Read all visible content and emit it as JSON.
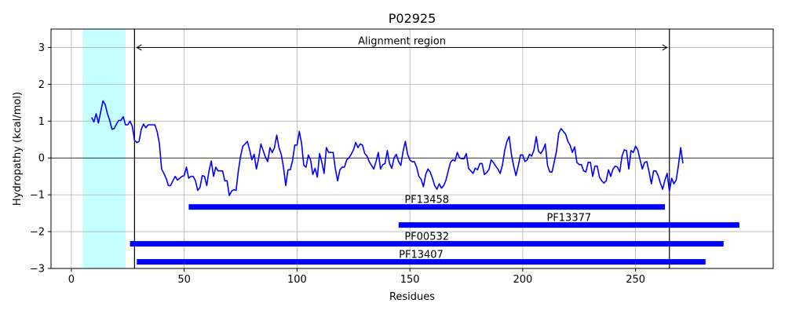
{
  "chart_data": {
    "type": "line",
    "title": "P02925",
    "xlabel": "Residues",
    "ylabel": "Hydropathy (kcal/mol)",
    "xlim": [
      -9,
      311
    ],
    "ylim": [
      -3,
      3.5
    ],
    "xticks": [
      0,
      50,
      100,
      150,
      200,
      250
    ],
    "yticks": [
      -3,
      -2,
      -1,
      0,
      1,
      2,
      3
    ],
    "grid": true,
    "colors": {
      "line": "#0000ff",
      "bars": "#0000ff",
      "highlight": "#c4ffff",
      "axis": "#000000",
      "grid": "#b0b0b0"
    },
    "highlight_region": {
      "x0": 5,
      "x1": 24
    },
    "alignment_region": {
      "label": "Alignment region",
      "x0": 28,
      "x1": 265,
      "y": 3
    },
    "series": [
      {
        "values": [
          [
            9,
            1.1
          ],
          [
            10,
            0.98
          ],
          [
            11,
            1.2
          ],
          [
            12,
            0.95
          ],
          [
            13,
            1.25
          ],
          [
            14,
            1.55
          ],
          [
            15,
            1.45
          ],
          [
            16,
            1.2
          ],
          [
            17,
            1.02
          ],
          [
            18,
            0.78
          ],
          [
            19,
            0.8
          ],
          [
            20,
            0.92
          ],
          [
            21,
            1.02
          ],
          [
            22,
            1.02
          ],
          [
            23,
            1.12
          ],
          [
            24,
            0.9
          ],
          [
            25,
            0.9
          ],
          [
            26,
            1.0
          ],
          [
            27,
            0.86
          ],
          [
            28,
            0.48
          ],
          [
            29,
            0.42
          ],
          [
            30,
            0.45
          ],
          [
            31,
            0.78
          ],
          [
            32,
            0.92
          ],
          [
            33,
            0.82
          ],
          [
            34,
            0.9
          ],
          [
            35,
            0.9
          ],
          [
            36,
            0.9
          ],
          [
            37,
            0.9
          ],
          [
            38,
            0.72
          ],
          [
            39,
            0.4
          ],
          [
            40,
            -0.3
          ],
          [
            41,
            -0.42
          ],
          [
            42,
            -0.55
          ],
          [
            43,
            -0.75
          ],
          [
            44,
            -0.75
          ],
          [
            45,
            -0.62
          ],
          [
            46,
            -0.5
          ],
          [
            47,
            -0.6
          ],
          [
            48,
            -0.55
          ],
          [
            49,
            -0.5
          ],
          [
            50,
            -0.48
          ],
          [
            51,
            -0.25
          ],
          [
            52,
            -0.55
          ],
          [
            53,
            -0.5
          ],
          [
            54,
            -0.5
          ],
          [
            55,
            -0.62
          ],
          [
            56,
            -0.88
          ],
          [
            57,
            -0.8
          ],
          [
            58,
            -0.48
          ],
          [
            59,
            -0.5
          ],
          [
            60,
            -0.75
          ],
          [
            61,
            -0.35
          ],
          [
            62,
            -0.08
          ],
          [
            63,
            -0.5
          ],
          [
            64,
            -0.25
          ],
          [
            65,
            -0.35
          ],
          [
            66,
            -0.35
          ],
          [
            67,
            -0.35
          ],
          [
            68,
            -0.62
          ],
          [
            69,
            -0.62
          ],
          [
            70,
            -1.02
          ],
          [
            71,
            -0.9
          ],
          [
            72,
            -0.86
          ],
          [
            73,
            -0.88
          ],
          [
            74,
            -0.35
          ],
          [
            75,
            0.05
          ],
          [
            76,
            0.32
          ],
          [
            77,
            0.38
          ],
          [
            78,
            0.45
          ],
          [
            79,
            0.22
          ],
          [
            80,
            -0.05
          ],
          [
            81,
            0.1
          ],
          [
            82,
            -0.3
          ],
          [
            83,
            0.0
          ],
          [
            84,
            0.38
          ],
          [
            85,
            0.2
          ],
          [
            86,
            0.02
          ],
          [
            87,
            -0.1
          ],
          [
            88,
            0.28
          ],
          [
            89,
            0.15
          ],
          [
            90,
            0.28
          ],
          [
            91,
            0.62
          ],
          [
            92,
            0.28
          ],
          [
            93,
            0.1
          ],
          [
            94,
            -0.25
          ],
          [
            95,
            -0.75
          ],
          [
            96,
            -0.32
          ],
          [
            97,
            -0.32
          ],
          [
            98,
            -0.08
          ],
          [
            99,
            0.35
          ],
          [
            100,
            0.35
          ],
          [
            101,
            0.72
          ],
          [
            102,
            0.4
          ],
          [
            103,
            -0.2
          ],
          [
            104,
            -0.25
          ],
          [
            105,
            0.08
          ],
          [
            106,
            -0.05
          ],
          [
            107,
            -0.45
          ],
          [
            108,
            -0.28
          ],
          [
            109,
            -0.52
          ],
          [
            110,
            0.12
          ],
          [
            111,
            -0.12
          ],
          [
            112,
            -0.42
          ],
          [
            113,
            0.28
          ],
          [
            114,
            0.15
          ],
          [
            115,
            0.15
          ],
          [
            116,
            0.15
          ],
          [
            117,
            -0.3
          ],
          [
            118,
            -0.62
          ],
          [
            119,
            -0.32
          ],
          [
            120,
            -0.25
          ],
          [
            121,
            -0.25
          ],
          [
            122,
            -0.05
          ],
          [
            123,
            0.0
          ],
          [
            124,
            0.1
          ],
          [
            125,
            0.22
          ],
          [
            126,
            0.42
          ],
          [
            127,
            0.28
          ],
          [
            128,
            0.38
          ],
          [
            129,
            0.35
          ],
          [
            130,
            0.12
          ],
          [
            131,
            0.05
          ],
          [
            132,
            -0.1
          ],
          [
            133,
            -0.2
          ],
          [
            134,
            -0.3
          ],
          [
            135,
            -0.1
          ],
          [
            136,
            0.15
          ],
          [
            137,
            -0.3
          ],
          [
            138,
            -0.18
          ],
          [
            139,
            -0.15
          ],
          [
            140,
            0.2
          ],
          [
            141,
            -0.15
          ],
          [
            142,
            -0.28
          ],
          [
            143,
            0.0
          ],
          [
            144,
            0.1
          ],
          [
            145,
            -0.1
          ],
          [
            146,
            -0.2
          ],
          [
            147,
            0.18
          ],
          [
            148,
            0.45
          ],
          [
            149,
            0.1
          ],
          [
            150,
            -0.05
          ],
          [
            151,
            -0.1
          ],
          [
            152,
            -0.1
          ],
          [
            153,
            -0.25
          ],
          [
            154,
            -0.5
          ],
          [
            155,
            -0.58
          ],
          [
            156,
            -0.78
          ],
          [
            157,
            -0.45
          ],
          [
            158,
            -0.3
          ],
          [
            159,
            -0.38
          ],
          [
            160,
            -0.55
          ],
          [
            161,
            -0.75
          ],
          [
            162,
            -0.85
          ],
          [
            163,
            -0.7
          ],
          [
            164,
            -0.82
          ],
          [
            165,
            -0.75
          ],
          [
            166,
            -0.6
          ],
          [
            167,
            -0.35
          ],
          [
            168,
            -0.12
          ],
          [
            169,
            -0.05
          ],
          [
            170,
            -0.08
          ],
          [
            171,
            0.15
          ],
          [
            172,
            0.0
          ],
          [
            173,
            -0.02
          ],
          [
            174,
            -0.02
          ],
          [
            175,
            0.12
          ],
          [
            176,
            -0.28
          ],
          [
            177,
            -0.35
          ],
          [
            178,
            -0.42
          ],
          [
            179,
            -0.28
          ],
          [
            180,
            -0.32
          ],
          [
            181,
            -0.15
          ],
          [
            182,
            -0.15
          ],
          [
            183,
            -0.45
          ],
          [
            184,
            -0.4
          ],
          [
            185,
            -0.32
          ],
          [
            186,
            -0.05
          ],
          [
            187,
            -0.12
          ],
          [
            188,
            -0.22
          ],
          [
            189,
            -0.3
          ],
          [
            190,
            -0.42
          ],
          [
            191,
            -0.2
          ],
          [
            192,
            0.2
          ],
          [
            193,
            0.45
          ],
          [
            194,
            0.58
          ],
          [
            195,
            0.1
          ],
          [
            196,
            -0.22
          ],
          [
            197,
            -0.48
          ],
          [
            198,
            -0.22
          ],
          [
            199,
            0.08
          ],
          [
            200,
            0.08
          ],
          [
            201,
            -0.1
          ],
          [
            202,
            -0.05
          ],
          [
            203,
            0.1
          ],
          [
            204,
            0.05
          ],
          [
            205,
            0.22
          ],
          [
            206,
            0.58
          ],
          [
            207,
            0.18
          ],
          [
            208,
            0.12
          ],
          [
            209,
            0.22
          ],
          [
            210,
            0.38
          ],
          [
            211,
            -0.2
          ],
          [
            212,
            -0.38
          ],
          [
            213,
            -0.38
          ],
          [
            214,
            -0.1
          ],
          [
            215,
            0.2
          ],
          [
            216,
            0.68
          ],
          [
            217,
            0.8
          ],
          [
            218,
            0.72
          ],
          [
            219,
            0.65
          ],
          [
            220,
            0.45
          ],
          [
            221,
            0.35
          ],
          [
            222,
            0.15
          ],
          [
            223,
            0.3
          ],
          [
            224,
            -0.12
          ],
          [
            225,
            -0.18
          ],
          [
            226,
            -0.18
          ],
          [
            227,
            -0.35
          ],
          [
            228,
            -0.38
          ],
          [
            229,
            -0.12
          ],
          [
            230,
            -0.12
          ],
          [
            231,
            -0.5
          ],
          [
            232,
            -0.22
          ],
          [
            233,
            -0.22
          ],
          [
            234,
            -0.52
          ],
          [
            235,
            -0.62
          ],
          [
            236,
            -0.68
          ],
          [
            237,
            -0.62
          ],
          [
            238,
            -0.32
          ],
          [
            239,
            -0.5
          ],
          [
            240,
            -0.3
          ],
          [
            241,
            -0.22
          ],
          [
            242,
            -0.25
          ],
          [
            243,
            -0.38
          ],
          [
            244,
            0.05
          ],
          [
            245,
            0.22
          ],
          [
            246,
            0.2
          ],
          [
            247,
            -0.3
          ],
          [
            248,
            0.2
          ],
          [
            249,
            0.15
          ],
          [
            250,
            0.32
          ],
          [
            251,
            0.22
          ],
          [
            252,
            -0.05
          ],
          [
            253,
            -0.3
          ],
          [
            254,
            -0.12
          ],
          [
            255,
            -0.1
          ],
          [
            256,
            -0.38
          ],
          [
            257,
            -0.7
          ],
          [
            258,
            -0.35
          ],
          [
            259,
            -0.35
          ],
          [
            260,
            -0.48
          ],
          [
            261,
            -0.68
          ],
          [
            262,
            -0.85
          ],
          [
            263,
            -0.6
          ],
          [
            264,
            -0.42
          ],
          [
            265,
            -0.9
          ],
          [
            266,
            -0.55
          ],
          [
            267,
            -0.7
          ],
          [
            268,
            -0.6
          ],
          [
            269,
            -0.2
          ],
          [
            270,
            0.28
          ],
          [
            271,
            -0.15
          ]
        ]
      }
    ],
    "domains": [
      {
        "label": "PF13458",
        "start": 52,
        "end": 263,
        "y": -1.33
      },
      {
        "label": "PF13377",
        "start": 145,
        "end": 296,
        "y": -1.82
      },
      {
        "label": "PF00532",
        "start": 26,
        "end": 289,
        "y": -2.33
      },
      {
        "label": "PF13407",
        "start": 29,
        "end": 281,
        "y": -2.82
      }
    ]
  }
}
